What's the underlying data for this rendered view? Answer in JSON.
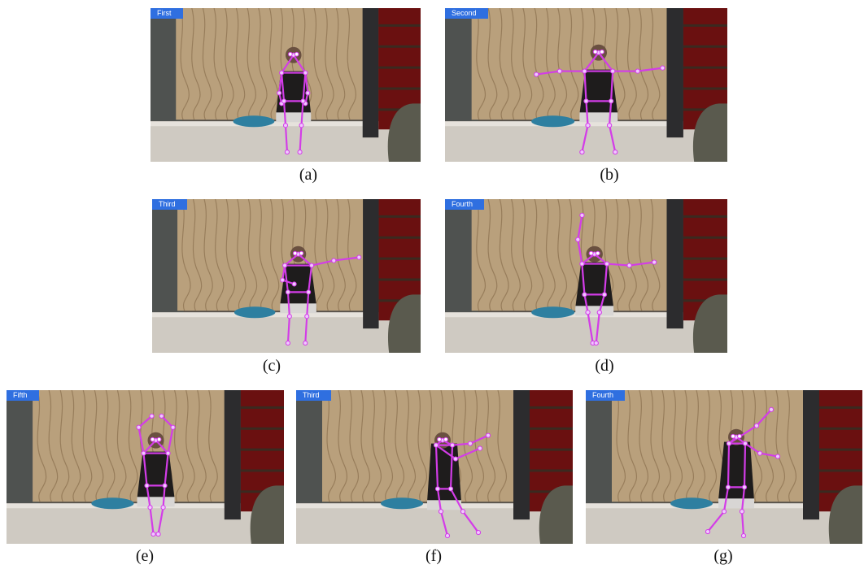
{
  "panels": [
    {
      "caption": "(a)",
      "label": "First"
    },
    {
      "caption": "(b)",
      "label": "Second"
    },
    {
      "caption": "(c)",
      "label": "Third"
    },
    {
      "caption": "(d)",
      "label": "Fourth"
    },
    {
      "caption": "(e)",
      "label": "Fifth"
    },
    {
      "caption": "(f)",
      "label": "Third"
    },
    {
      "caption": "(g)",
      "label": "Fourth"
    }
  ],
  "colors": {
    "label_bg": "#2f6fe0",
    "skeleton": "#d33ce8",
    "keypoint": "#f0c8ff"
  }
}
